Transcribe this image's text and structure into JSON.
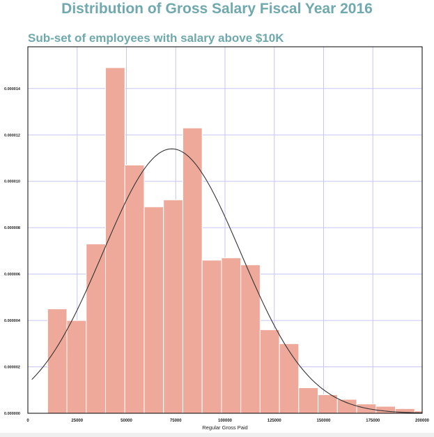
{
  "chart_data": {
    "type": "bar",
    "title": "Distribution of Gross Salary Fiscal Year 2016",
    "subtitle": "Sub-set of employees with salary above $10K",
    "xlabel": "Regular Gross Paid",
    "ylabel": "",
    "xlim": [
      0,
      200000
    ],
    "ylim": [
      0,
      1.58e-05
    ],
    "x_ticks": [
      0,
      25000,
      50000,
      75000,
      100000,
      125000,
      150000,
      175000,
      200000
    ],
    "y_ticks": [
      0,
      2e-06,
      4e-06,
      6e-06,
      8e-06,
      1e-05,
      1.2e-05,
      1.4e-05
    ],
    "y_tick_labels": [
      "0.000000",
      "0.000002",
      "0.000004",
      "0.000006",
      "0.000008",
      "0.000010",
      "0.000012",
      "0.000014"
    ],
    "grid": true,
    "bins": [
      {
        "x0": 10000,
        "x1": 19800,
        "density": 4.5e-06
      },
      {
        "x0": 19800,
        "x1": 29600,
        "density": 4e-06
      },
      {
        "x0": 29600,
        "x1": 39400,
        "density": 7.3e-06
      },
      {
        "x0": 39400,
        "x1": 49200,
        "density": 1.49e-05
      },
      {
        "x0": 49200,
        "x1": 59000,
        "density": 1.07e-05
      },
      {
        "x0": 59000,
        "x1": 68800,
        "density": 8.9e-06
      },
      {
        "x0": 68800,
        "x1": 78600,
        "density": 9.2e-06
      },
      {
        "x0": 78600,
        "x1": 88400,
        "density": 1.23e-05
      },
      {
        "x0": 88400,
        "x1": 98200,
        "density": 6.6e-06
      },
      {
        "x0": 98200,
        "x1": 108000,
        "density": 6.7e-06
      },
      {
        "x0": 108000,
        "x1": 117800,
        "density": 6.4e-06
      },
      {
        "x0": 117800,
        "x1": 127600,
        "density": 3.6e-06
      },
      {
        "x0": 127600,
        "x1": 137400,
        "density": 3e-06
      },
      {
        "x0": 137400,
        "x1": 147200,
        "density": 1.1e-06
      },
      {
        "x0": 147200,
        "x1": 157000,
        "density": 8e-07
      },
      {
        "x0": 157000,
        "x1": 166800,
        "density": 6e-07
      },
      {
        "x0": 166800,
        "x1": 176600,
        "density": 4e-07
      },
      {
        "x0": 176600,
        "x1": 186400,
        "density": 3e-07
      },
      {
        "x0": 186400,
        "x1": 196200,
        "density": 2e-07
      },
      {
        "x0": 196200,
        "x1": 200000,
        "density": 1e-07
      }
    ],
    "fit_curve": {
      "type": "normal",
      "mean": 73000,
      "std": 35000,
      "peak_density": 1.14e-05,
      "x_range": [
        2000,
        200000
      ]
    },
    "colors": {
      "bars": "#eea99a",
      "bar_edge": "#ffffff",
      "curve": "#333333",
      "grid": "#c6c6f2",
      "title": "#6fa9ad"
    }
  }
}
